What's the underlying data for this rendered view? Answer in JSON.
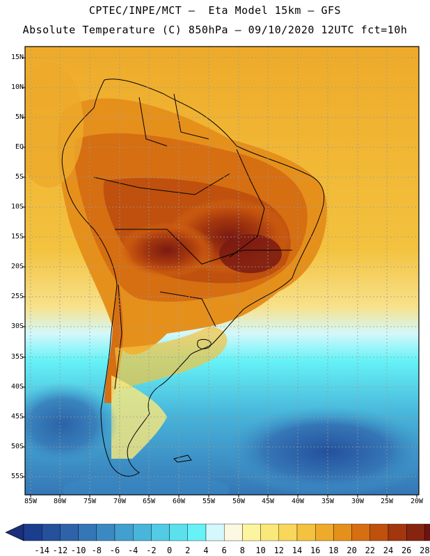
{
  "header": {
    "line1": "CPTEC/INPE/MCT –  Eta Model 15km – GFS",
    "line2": "Absolute Temperature (C) 850hPa – 09/10/2020 12UTC fct=10h"
  },
  "axes": {
    "lat_labels": [
      "15N",
      "10N",
      "5N",
      "EQ",
      "5S",
      "10S",
      "15S",
      "20S",
      "25S",
      "30S",
      "35S",
      "40S",
      "45S",
      "50S",
      "55S"
    ],
    "lon_labels": [
      "85W",
      "80W",
      "75W",
      "70W",
      "65W",
      "60W",
      "55W",
      "50W",
      "45W",
      "40W",
      "35W",
      "30W",
      "25W",
      "20W"
    ]
  },
  "colorbar": {
    "labels": [
      "-14",
      "-12",
      "-10",
      "-8",
      "-6",
      "-4",
      "-2",
      "0",
      "2",
      "4",
      "6",
      "8",
      "10",
      "12",
      "14",
      "16",
      "18",
      "20",
      "22",
      "24",
      "26",
      "28"
    ],
    "colors": [
      "#1b3d8f",
      "#24509c",
      "#2e63aa",
      "#3576b6",
      "#3b89c2",
      "#41a0cf",
      "#48b5da",
      "#52cbe4",
      "#5be0ee",
      "#66f2f7",
      "#d4f8fb",
      "#fdf8e2",
      "#fdf4a0",
      "#fbe87a",
      "#f8d75a",
      "#f3c23e",
      "#eeaa2a",
      "#e6901c",
      "#d66e12",
      "#bf500e",
      "#a3360e",
      "#872410",
      "#6e1312"
    ],
    "arrow_left": "#1b2e7c",
    "arrow_right": "#6a0a26"
  }
}
